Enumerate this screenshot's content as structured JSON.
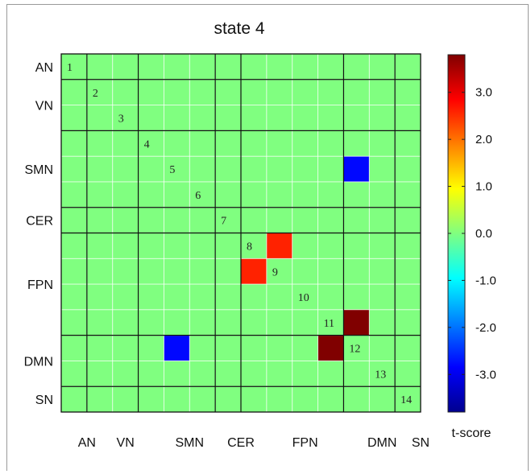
{
  "chart_data": {
    "type": "heatmap",
    "title": "state 4",
    "networks": [
      {
        "name": "AN",
        "start": 1,
        "end": 1
      },
      {
        "name": "VN",
        "start": 2,
        "end": 3
      },
      {
        "name": "SMN",
        "start": 4,
        "end": 6
      },
      {
        "name": "CER",
        "start": 7,
        "end": 7
      },
      {
        "name": "FPN",
        "start": 8,
        "end": 11
      },
      {
        "name": "DMN",
        "start": 12,
        "end": 13
      },
      {
        "name": "SN",
        "start": 14,
        "end": 14
      }
    ],
    "diagonal_labels": [
      "1",
      "2",
      "3",
      "4",
      "5",
      "6",
      "7",
      "8",
      "9",
      "10",
      "11",
      "12",
      "13",
      "14"
    ],
    "background_value": 0.0,
    "cells": [
      {
        "row": 5,
        "col": 12,
        "value": -2.8
      },
      {
        "row": 12,
        "col": 5,
        "value": -2.8
      },
      {
        "row": 8,
        "col": 9,
        "value": 2.6
      },
      {
        "row": 9,
        "col": 8,
        "value": 2.6
      },
      {
        "row": 11,
        "col": 12,
        "value": 3.8
      },
      {
        "row": 12,
        "col": 11,
        "value": 3.8
      }
    ],
    "colorbar": {
      "label": "t-score",
      "range": [
        -3.8,
        3.8
      ],
      "ticks": [
        3.0,
        2.0,
        1.0,
        0.0,
        -1.0,
        -2.0,
        -3.0
      ],
      "tick_labels": [
        "3.0",
        "2.0",
        "1.0",
        "0.0",
        "-1.0",
        "-2.0",
        "-3.0"
      ],
      "colormap": "jet"
    }
  }
}
